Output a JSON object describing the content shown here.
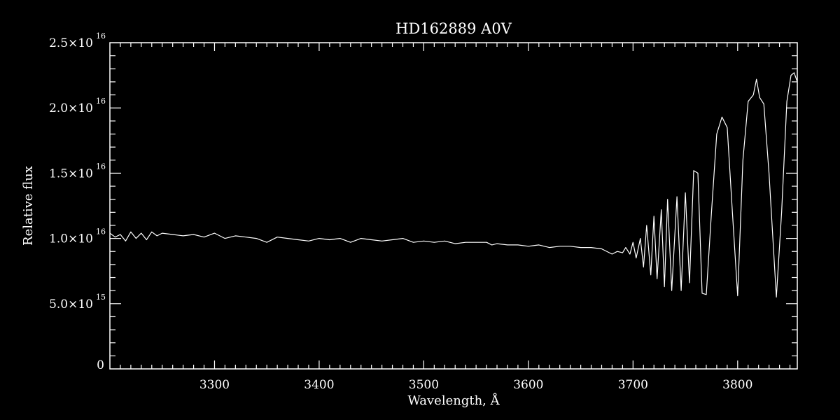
{
  "chart_data": {
    "type": "line",
    "title": "HD162889  A0V",
    "xlabel": "Wavelength, Å",
    "ylabel": "Relative flux",
    "xlim": [
      3200,
      3857
    ],
    "ylim": [
      0,
      2.5e+16
    ],
    "x_ticks": [
      {
        "value": 3300,
        "label": "3300"
      },
      {
        "value": 3400,
        "label": "3400"
      },
      {
        "value": 3500,
        "label": "3500"
      },
      {
        "value": 3600,
        "label": "3600"
      },
      {
        "value": 3700,
        "label": "3700"
      },
      {
        "value": 3800,
        "label": "3800"
      }
    ],
    "y_ticks": [
      {
        "value": 0,
        "mantissa": "0",
        "exponent": ""
      },
      {
        "value": 5000000000000000.0,
        "mantissa": "5.0×10",
        "exponent": "15"
      },
      {
        "value": 1e+16,
        "mantissa": "1.0×10",
        "exponent": "16"
      },
      {
        "value": 1.5e+16,
        "mantissa": "1.5×10",
        "exponent": "16"
      },
      {
        "value": 2e+16,
        "mantissa": "2.0×10",
        "exponent": "16"
      },
      {
        "value": 2.5e+16,
        "mantissa": "2.5×10",
        "exponent": "16"
      }
    ],
    "grid": false,
    "colors": {
      "background": "#000000",
      "foreground": "#ffffff"
    },
    "series": [
      {
        "x": [
          3200,
          3205,
          3210,
          3215,
          3220,
          3225,
          3230,
          3235,
          3240,
          3245,
          3250,
          3260,
          3270,
          3280,
          3290,
          3300,
          3310,
          3320,
          3330,
          3340,
          3350,
          3360,
          3370,
          3380,
          3390,
          3400,
          3410,
          3420,
          3430,
          3440,
          3450,
          3460,
          3470,
          3480,
          3490,
          3500,
          3510,
          3520,
          3530,
          3540,
          3550,
          3560,
          3565,
          3570,
          3580,
          3590,
          3600,
          3610,
          3620,
          3630,
          3640,
          3650,
          3660,
          3670,
          3680,
          3685,
          3690,
          3693,
          3697,
          3700,
          3703,
          3707,
          3710,
          3713,
          3717,
          3720,
          3723,
          3727,
          3730,
          3733,
          3737,
          3742,
          3746,
          3750,
          3754,
          3758,
          3762,
          3766,
          3770,
          3775,
          3780,
          3785,
          3790,
          3795,
          3800,
          3805,
          3810,
          3815,
          3818,
          3821,
          3825,
          3830,
          3837,
          3842,
          3847,
          3851,
          3854,
          3857
        ],
        "y": [
          1.04e+16,
          1.01e+16,
          1.03e+16,
          9800000000000000.0,
          1.05e+16,
          1e+16,
          1.04e+16,
          9900000000000000.0,
          1.05e+16,
          1.02e+16,
          1.04e+16,
          1.03e+16,
          1.02e+16,
          1.03e+16,
          1.01e+16,
          1.04e+16,
          1e+16,
          1.02e+16,
          1.01e+16,
          1e+16,
          9700000000000000.0,
          1.01e+16,
          1e+16,
          9900000000000000.0,
          9800000000000000.0,
          1e+16,
          9900000000000000.0,
          1e+16,
          9700000000000000.0,
          1e+16,
          9900000000000000.0,
          9800000000000000.0,
          9900000000000000.0,
          1e+16,
          9700000000000000.0,
          9800000000000000.0,
          9700000000000000.0,
          9800000000000000.0,
          9600000000000000.0,
          9700000000000000.0,
          9700000000000000.0,
          9700000000000000.0,
          9500000000000000.0,
          9600000000000000.0,
          9500000000000000.0,
          9500000000000000.0,
          9400000000000000.0,
          9500000000000000.0,
          9300000000000000.0,
          9400000000000000.0,
          9400000000000000.0,
          9300000000000000.0,
          9300000000000000.0,
          9200000000000000.0,
          8800000000000000.0,
          9000000000000000.0,
          8900000000000000.0,
          9300000000000000.0,
          8800000000000000.0,
          9700000000000000.0,
          8500000000000000.0,
          1e+16,
          7800000000000000.0,
          1.1e+16,
          7200000000000000.0,
          1.17e+16,
          6900000000000000.0,
          1.22e+16,
          6300000000000000.0,
          1.3e+16,
          6000000000000000.0,
          1.32e+16,
          6000000000000000.0,
          1.35e+16,
          6600000000000000.0,
          1.52e+16,
          1.5e+16,
          5800000000000000.0,
          5700000000000000.0,
          1.2e+16,
          1.8e+16,
          1.93e+16,
          1.85e+16,
          1.2e+16,
          5600000000000000.0,
          1.6e+16,
          2.05e+16,
          2.1e+16,
          2.22e+16,
          2.08e+16,
          2.03e+16,
          1.5e+16,
          5500000000000000.0,
          1.2e+16,
          2.05e+16,
          2.25e+16,
          2.27e+16,
          2.2e+16
        ]
      }
    ]
  }
}
